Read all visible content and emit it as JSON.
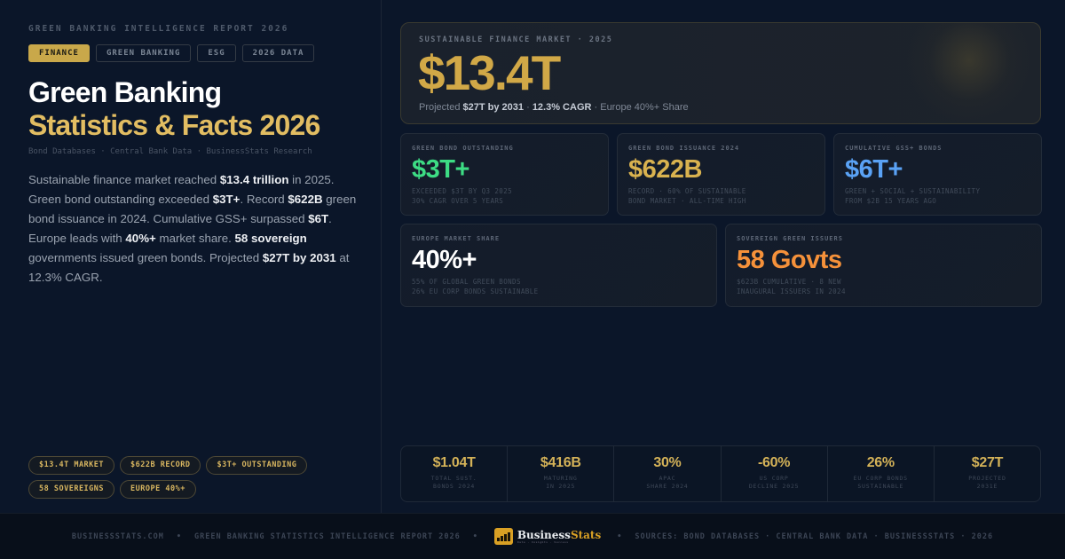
{
  "left": {
    "eyebrow": "GREEN BANKING INTELLIGENCE REPORT 2026",
    "tags": [
      "FINANCE",
      "GREEN BANKING",
      "ESG",
      "2026 DATA"
    ],
    "title_line1": "Green Banking",
    "title_line2": "Statistics & Facts 2026",
    "sources": "Bond Databases · Central Bank Data · BusinessStats Research",
    "description": [
      {
        "t": "Sustainable finance market reached ",
        "b": false
      },
      {
        "t": "$13.4 trillion",
        "b": true
      },
      {
        "t": " in 2025. Green bond outstanding exceeded ",
        "b": false
      },
      {
        "t": "$3T+",
        "b": true
      },
      {
        "t": ". Record ",
        "b": false
      },
      {
        "t": "$622B",
        "b": true
      },
      {
        "t": " green bond issuance in 2024. Cumulative GSS+ surpassed ",
        "b": false
      },
      {
        "t": "$6T",
        "b": true
      },
      {
        "t": ". Europe leads with ",
        "b": false
      },
      {
        "t": "40%+",
        "b": true
      },
      {
        "t": " market share. ",
        "b": false
      },
      {
        "t": "58 sovereign",
        "b": true
      },
      {
        "t": " governments issued green bonds. Projected ",
        "b": false
      },
      {
        "t": "$27T by 2031",
        "b": true
      },
      {
        "t": " at 12.3% CAGR.",
        "b": false
      }
    ],
    "chips": [
      "$13.4T MARKET",
      "$622B RECORD",
      "$3T+ OUTSTANDING",
      "58 SOVEREIGNS",
      "EUROPE 40%+"
    ]
  },
  "hero": {
    "label": "SUSTAINABLE FINANCE MARKET · 2025",
    "value": "$13.4T",
    "sub_prefix": "Projected ",
    "sub_b1": "$27T by 2031",
    "sub_sep1": " · ",
    "sub_b2": "12.3% CAGR",
    "sub_suffix": " · Europe 40%+ Share",
    "color": "#d1a847"
  },
  "cards": [
    {
      "label": "GREEN BOND OUTSTANDING",
      "value": "$3T+",
      "note1": "EXCEEDED $3T BY Q3 2025",
      "note2": "30% CAGR OVER 5 YEARS",
      "color": "#3ddc84"
    },
    {
      "label": "GREEN BOND ISSUANCE 2024",
      "value": "$622B",
      "note1": "RECORD · 60% OF SUSTAINABLE",
      "note2": "BOND MARKET · ALL-TIME HIGH",
      "color": "#d9b24f"
    },
    {
      "label": "CUMULATIVE GSS+ BONDS",
      "value": "$6T+",
      "note1": "GREEN + SOCIAL + SUSTAINABILITY",
      "note2": "FROM $2B 15 YEARS AGO",
      "color": "#5aa2f5"
    },
    {
      "label": "EUROPE MARKET SHARE",
      "value": "40%+",
      "note1": "55% OF GLOBAL GREEN BONDS",
      "note2": "26% EU CORP BONDS SUSTAINABLE",
      "color": "#ffffff"
    },
    {
      "label": "SOVEREIGN GREEN ISSUERS",
      "value": "58 Govts",
      "note1": "$623B CUMULATIVE · 8 NEW",
      "note2": "INAUGURAL ISSUERS IN 2024",
      "color": "#f5913a"
    }
  ],
  "strip": [
    {
      "value": "$1.04T",
      "label": "TOTAL SUST.\nBONDS 2024"
    },
    {
      "value": "$416B",
      "label": "MATURING\nIN 2025"
    },
    {
      "value": "30%",
      "label": "APAC\nSHARE 2024"
    },
    {
      "value": "-60%",
      "label": "US CORP\nDECLINE 2025"
    },
    {
      "value": "26%",
      "label": "EU CORP BONDS\nSUSTAINABLE"
    },
    {
      "value": "$27T",
      "label": "PROJECTED\n2031E"
    }
  ],
  "footer": {
    "site": "BUSINESSSTATS.COM",
    "report": "GREEN BANKING STATISTICS INTELLIGENCE REPORT 2026",
    "sources": "SOURCES: BOND DATABASES · CENTRAL BANK DATA · BUSINESSSTATS · 2026",
    "logo_main": "Business",
    "logo_accent": "Stats",
    "logo_tagline": "Data · Insights · Success",
    "separator": "•"
  }
}
